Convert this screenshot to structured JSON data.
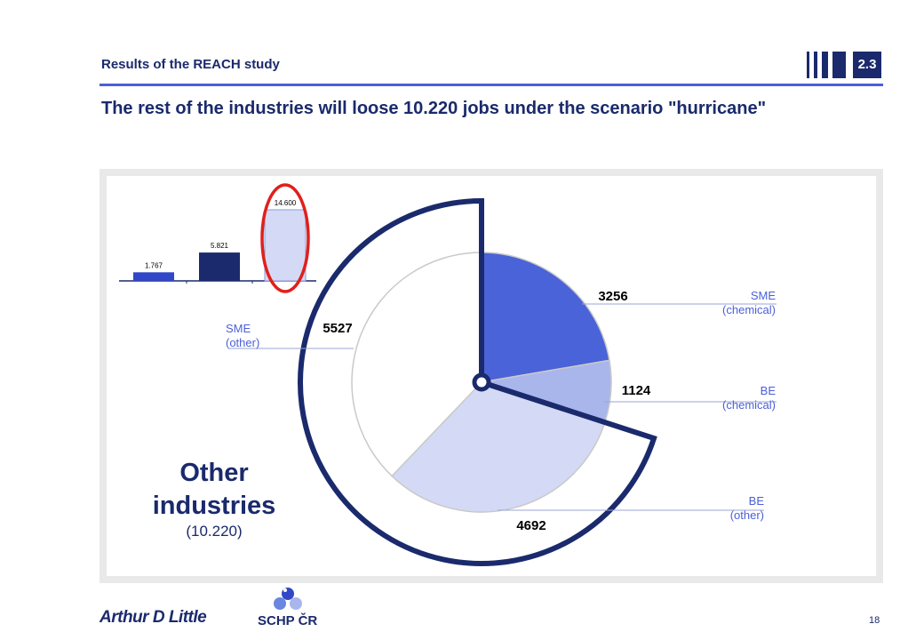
{
  "header": {
    "label": "Results of the REACH study",
    "section_number": "2.3"
  },
  "headline": "The rest of the industries will loose 10.220 jobs under the scenario \"hurricane\"",
  "colors": {
    "navy": "#1a2a6c",
    "blue": "#4a63d8",
    "light_blue": "#a9b6ec",
    "pale_blue": "#d4daf5",
    "annotation": "#4b5fd6",
    "highlight": "#e0201c"
  },
  "chart_data": [
    {
      "type": "bar",
      "categories": [
        "",
        "",
        ""
      ],
      "values": [
        1767,
        5821,
        14600
      ],
      "value_labels": [
        "1.767",
        "5.821",
        "14.600"
      ],
      "colors": [
        "#3147c8",
        "#1a2a6c",
        "#d4daf5"
      ],
      "highlighted_index": 2
    },
    {
      "type": "pie",
      "slices": [
        {
          "label": "SME (chemical)",
          "value": 3256,
          "value_label": "3256",
          "color": "#4a63d8"
        },
        {
          "label": "BE (chemical)",
          "value": 1124,
          "value_label": "1124",
          "color": "#a9b6ec"
        },
        {
          "label": "BE (other)",
          "value": 4692,
          "value_label": "4692",
          "color": "#d4daf5"
        },
        {
          "label": "SME (other)",
          "value": 5527,
          "value_label": "5527",
          "color": "#ffffff"
        }
      ],
      "slice_label_lines": [
        [
          "SME",
          "(chemical)"
        ],
        [
          "BE",
          "(chemical)"
        ],
        [
          "BE",
          "(other)"
        ],
        [
          "SME",
          "(other)"
        ]
      ],
      "highlight_title": [
        "Other",
        "industries"
      ],
      "highlight_value": "(10.220)"
    }
  ],
  "footer": {
    "logo_text": "Arthur D Little",
    "partner_logo_text": "SCHP ČR",
    "page_number": "18"
  }
}
